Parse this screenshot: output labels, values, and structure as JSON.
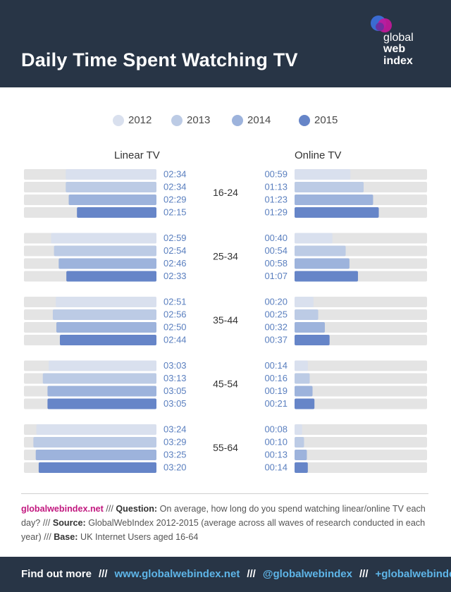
{
  "header": {
    "title": "Daily Time Spent Watching TV",
    "logo_line1": "global",
    "logo_line2": "web",
    "logo_line3": "index"
  },
  "colors": {
    "2012": "#d9e0ee",
    "2013": "#bccbe5",
    "2014": "#9db3dc",
    "2015": "#6685c8",
    "track": "#e4e4e4",
    "value_text": "#5a7fbf"
  },
  "chart_data": {
    "type": "bar",
    "title": "Daily Time Spent Watching TV",
    "units": "hours:minutes per day",
    "legend": [
      "2012",
      "2013",
      "2014",
      "2015"
    ],
    "categories": [
      "16-24",
      "25-34",
      "35-44",
      "45-54",
      "55-64"
    ],
    "panels": [
      {
        "name": "Linear TV",
        "max_minutes": 225,
        "series": [
          {
            "name": "2012",
            "values": [
              "02:34",
              "02:59",
              "02:51",
              "03:03",
              "03:24"
            ]
          },
          {
            "name": "2013",
            "values": [
              "02:34",
              "02:54",
              "02:56",
              "03:13",
              "03:29"
            ]
          },
          {
            "name": "2014",
            "values": [
              "02:29",
              "02:46",
              "02:50",
              "03:05",
              "03:25"
            ]
          },
          {
            "name": "2015",
            "values": [
              "02:15",
              "02:33",
              "02:44",
              "03:05",
              "03:20"
            ]
          }
        ]
      },
      {
        "name": "Online TV",
        "max_minutes": 140,
        "series": [
          {
            "name": "2012",
            "values": [
              "00:59",
              "00:40",
              "00:20",
              "00:14",
              "00:08"
            ]
          },
          {
            "name": "2013",
            "values": [
              "01:13",
              "00:54",
              "00:25",
              "00:16",
              "00:10"
            ]
          },
          {
            "name": "2014",
            "values": [
              "01:23",
              "00:58",
              "00:32",
              "00:19",
              "00:13"
            ]
          },
          {
            "name": "2015",
            "values": [
              "01:29",
              "01:07",
              "00:37",
              "00:21",
              "00:14"
            ]
          }
        ]
      }
    ]
  },
  "footnote": {
    "site": "globalwebindex.net",
    "sep1": " /// ",
    "q_label": "Question:",
    "q_text": " On average, how long do you spend watching linear/online TV each day? ",
    "sep2": "/// ",
    "source_label": "Source:",
    "source_text": " GlobalWebIndex 2012-2015 (average across all waves of research conducted in each year) ",
    "sep3": "/// ",
    "base_label": "Base:",
    "base_text": " UK Internet Users aged 16-64"
  },
  "footer": {
    "find_out": "Find out more",
    "sep": "///",
    "website": "www.globalwebindex.net",
    "twitter": "@globalwebindex",
    "gplus": "+globalwebindex"
  }
}
